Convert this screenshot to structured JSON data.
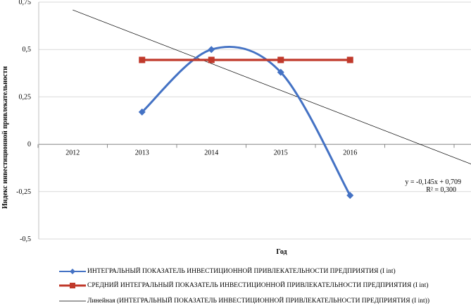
{
  "chart_data": {
    "type": "line",
    "xlabel": "Год",
    "ylabel": "Индекс инвестиционной привлекательности",
    "x_categories": [
      "2012",
      "2013",
      "2014",
      "2015",
      "2016"
    ],
    "ylim": [
      -0.5,
      0.75
    ],
    "yticks": [
      "0,75",
      "0,5",
      "0,25",
      "0",
      "-0,25",
      "-0,5"
    ],
    "ytick_values": [
      0.75,
      0.5,
      0.25,
      0,
      -0.25,
      -0.5
    ],
    "grid": true,
    "legend_position": "bottom",
    "series": [
      {
        "name": "ИНТЕГРАЛЬНЫЙ ПОКАЗАТЕЛЬ ИНВЕСТИЦИОННОЙ ПРИВЛЕКАТЕЛЬНОСТИ ПРЕДПРИЯТИЯ (I int)",
        "x": [
          "2013",
          "2014",
          "2015",
          "2016"
        ],
        "values": [
          0.17,
          0.5,
          0.38,
          -0.27
        ],
        "color": "#4472c4",
        "marker": "diamond",
        "smooth": true
      },
      {
        "name": "СРЕДНИЙ ИНТЕГРАЛЬНЫЙ ПОКАЗАТЕЛЬ ИНВЕСТИЦИОННОЙ ПРИВЛЕКАТЕЛЬНОСТИ ПРЕДПРИЯТИЯ (I int)",
        "x": [
          "2013",
          "2014",
          "2015",
          "2016"
        ],
        "values": [
          0.445,
          0.445,
          0.445,
          0.445
        ],
        "color": "#c0392b",
        "marker": "square",
        "smooth": false
      }
    ],
    "trendline": {
      "name": "Линейная (ИНТЕГРАЛЬНЫЙ ПОКАЗАТЕЛЬ ИНВЕСТИЦИОННОЙ ПРИВЛЕКАТЕЛЬНОСТИ ПРЕДПРИЯТИЯ (I int))",
      "slope": -0.145,
      "intercept": 0.709,
      "equation": "y = -0,145x + 0,709",
      "r2": "R² = 0,300",
      "color": "#000000"
    }
  }
}
